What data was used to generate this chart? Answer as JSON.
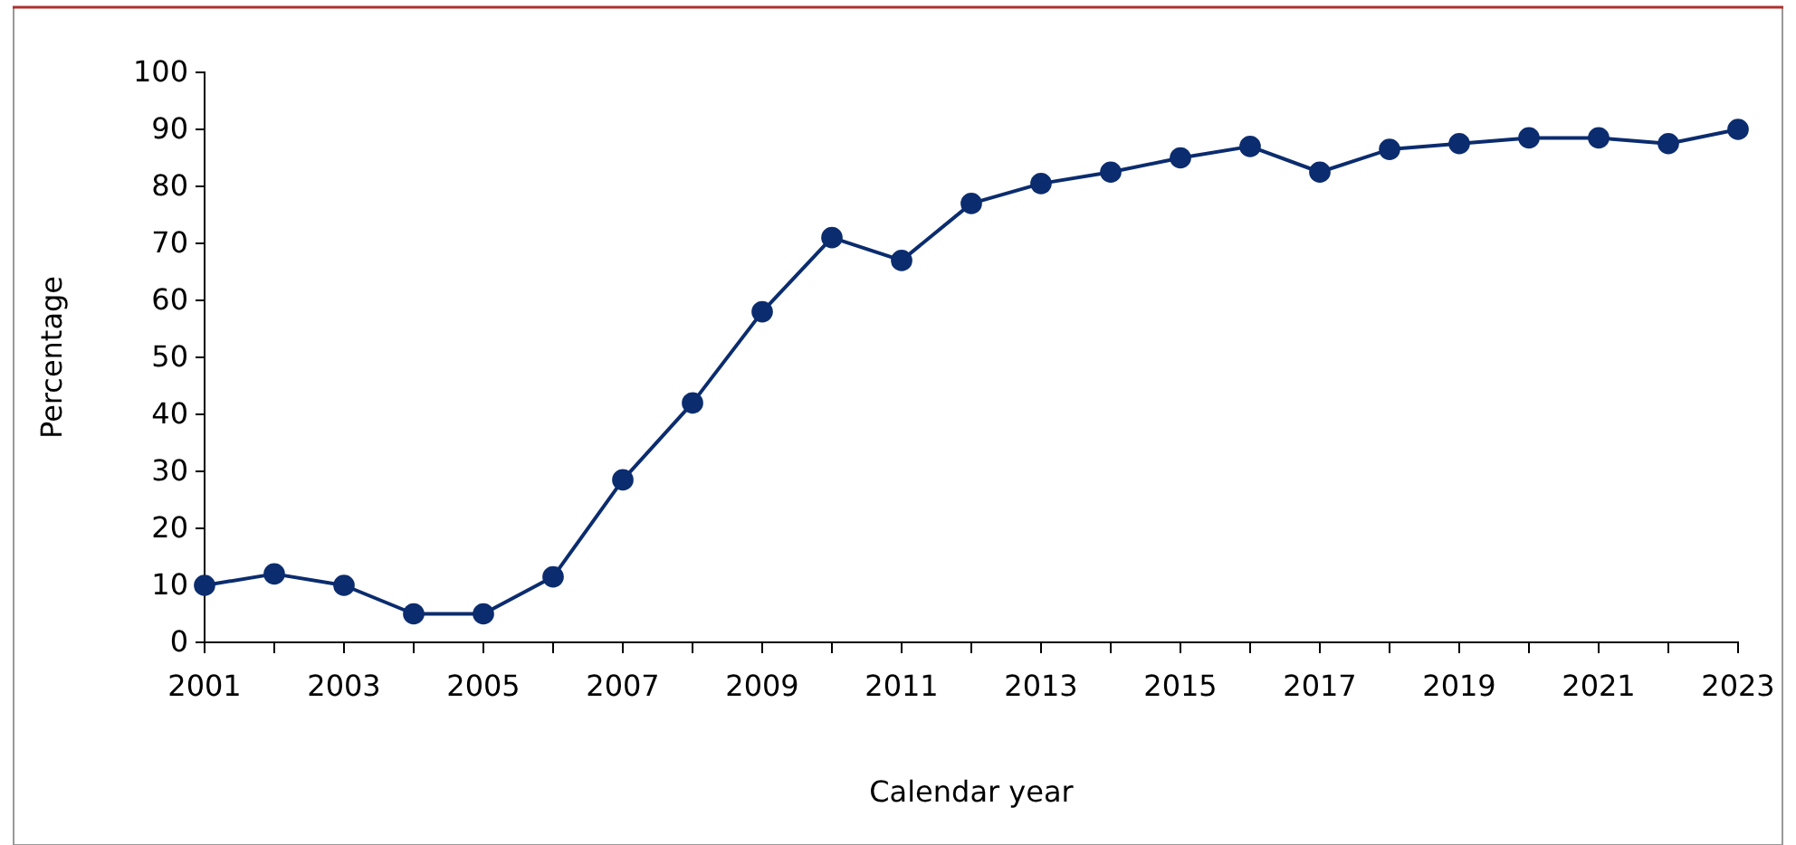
{
  "chart_data": {
    "type": "line",
    "xlabel": "Calendar year",
    "ylabel": "Percentage",
    "x": [
      2001,
      2002,
      2003,
      2004,
      2005,
      2006,
      2007,
      2008,
      2009,
      2010,
      2011,
      2012,
      2013,
      2014,
      2015,
      2016,
      2017,
      2018,
      2019,
      2020,
      2021,
      2022,
      2023
    ],
    "series": [
      {
        "color": "#0b2c6e",
        "values": [
          10,
          12,
          10,
          5,
          5,
          11.5,
          28.5,
          42,
          58,
          71,
          67,
          77,
          80.5,
          82.5,
          85,
          87,
          82.5,
          86.5,
          87.5,
          88.5,
          88.5,
          87.5,
          90
        ]
      }
    ],
    "xlim": [
      2001,
      2023
    ],
    "xticks": [
      2001,
      {
        "value": 2002,
        "label": null
      },
      2003,
      {
        "value": 2004,
        "label": null
      },
      2005,
      {
        "value": 2006,
        "label": null
      },
      2007,
      {
        "value": 2008,
        "label": null
      },
      2009,
      {
        "value": 2010,
        "label": null
      },
      2011,
      {
        "value": 2012,
        "label": null
      },
      2013,
      {
        "value": 2014,
        "label": null
      },
      2015,
      {
        "value": 2016,
        "label": null
      },
      2017,
      {
        "value": 2018,
        "label": null
      },
      2019,
      {
        "value": 2020,
        "label": null
      },
      2021,
      {
        "value": 2022,
        "label": null
      },
      2023
    ],
    "ylim": [
      0,
      100
    ],
    "yticks": [
      0,
      10,
      20,
      30,
      40,
      50,
      60,
      70,
      80,
      90,
      100
    ],
    "grid": false,
    "marker": "circle",
    "line_style": "solid"
  }
}
